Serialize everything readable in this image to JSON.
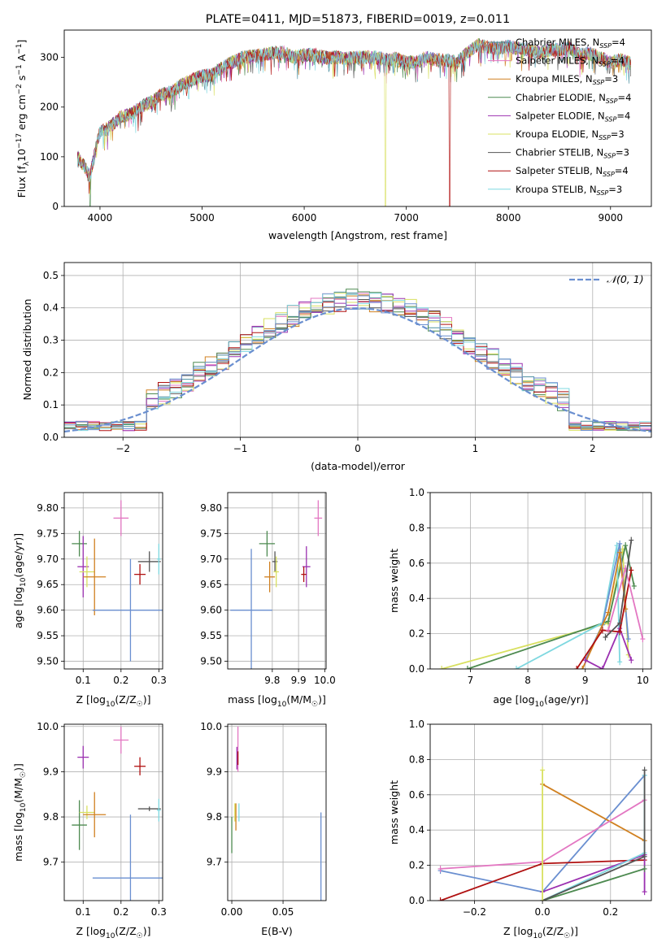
{
  "chart_data": [
    {
      "id": "spectrum",
      "type": "line",
      "title": "PLATE=0411, MJD=51873, FIBERID=0019, z=0.011",
      "xlabel": "wavelength [Angstrom, rest frame]",
      "ylabel": "Flux [f_λ 10^-17 erg cm^-2 s^-1 A^-1]",
      "xlim": [
        3650,
        9400
      ],
      "ylim": [
        0,
        355
      ],
      "xticks": [
        4000,
        5000,
        6000,
        7000,
        8000,
        9000
      ],
      "yticks": [
        0,
        100,
        200,
        300
      ],
      "grid": false,
      "legend": "right",
      "series": [
        {
          "name": "Chabrier MILES, N_SSP=4",
          "color": "#4a8fa0"
        },
        {
          "name": "Salpeter MILES, N_SSP=4",
          "color": "#e377c2"
        },
        {
          "name": "Kroupa MILES, N_SSP=3",
          "color": "#d08020"
        },
        {
          "name": "Chabrier ELODIE, N_SSP=4",
          "color": "#4d8a50"
        },
        {
          "name": "Salpeter ELODIE, N_SSP=4",
          "color": "#9b30b0"
        },
        {
          "name": "Kroupa ELODIE, N_SSP=3",
          "color": "#d8e060"
        },
        {
          "name": "Chabrier STELIB, N_SSP=3",
          "color": "#555555"
        },
        {
          "name": "Salpeter STELIB, N_SSP=4",
          "color": "#b01010"
        },
        {
          "name": "Kroupa STELIB, N_SSP=3",
          "color": "#7fd8e0"
        }
      ],
      "profile": [
        [
          3780,
          100
        ],
        [
          3850,
          80
        ],
        [
          3900,
          60
        ],
        [
          3950,
          110
        ],
        [
          4000,
          150
        ],
        [
          4100,
          160
        ],
        [
          4200,
          180
        ],
        [
          4300,
          185
        ],
        [
          4400,
          200
        ],
        [
          4500,
          210
        ],
        [
          4600,
          225
        ],
        [
          4700,
          230
        ],
        [
          4800,
          245
        ],
        [
          4900,
          255
        ],
        [
          5000,
          262
        ],
        [
          5100,
          265
        ],
        [
          5200,
          280
        ],
        [
          5300,
          290
        ],
        [
          5400,
          300
        ],
        [
          5500,
          302
        ],
        [
          5600,
          305
        ],
        [
          5700,
          310
        ],
        [
          5800,
          310
        ],
        [
          5900,
          300
        ],
        [
          6000,
          305
        ],
        [
          6100,
          305
        ],
        [
          6200,
          300
        ],
        [
          6300,
          300
        ],
        [
          6400,
          298
        ],
        [
          6500,
          300
        ],
        [
          6600,
          300
        ],
        [
          6700,
          300
        ],
        [
          6800,
          295
        ],
        [
          6900,
          298
        ],
        [
          7000,
          290
        ],
        [
          7100,
          290
        ],
        [
          7200,
          300
        ],
        [
          7300,
          295
        ],
        [
          7400,
          295
        ],
        [
          7500,
          290
        ],
        [
          7600,
          310
        ],
        [
          7700,
          325
        ],
        [
          7800,
          320
        ],
        [
          7900,
          318
        ],
        [
          8000,
          322
        ],
        [
          8100,
          318
        ],
        [
          8200,
          315
        ],
        [
          8300,
          310
        ],
        [
          8400,
          315
        ],
        [
          8500,
          315
        ],
        [
          8600,
          320
        ],
        [
          8700,
          305
        ],
        [
          8800,
          308
        ],
        [
          8900,
          300
        ],
        [
          9000,
          290
        ],
        [
          9100,
          295
        ],
        [
          9200,
          288
        ]
      ]
    },
    {
      "id": "residuals",
      "type": "histogram",
      "xlabel": "(data-model)/error",
      "ylabel": "Normed distribution",
      "xlim": [
        -2.5,
        2.5
      ],
      "ylim": [
        0,
        0.54
      ],
      "xticks": [
        -2,
        -1,
        0,
        1,
        2
      ],
      "yticks": [
        0.0,
        0.1,
        0.2,
        0.3,
        0.4,
        0.5
      ],
      "grid": true,
      "legend": "top-right",
      "reference": {
        "name": "𝒩(0, 1)",
        "color": "#6a8fd0"
      },
      "bin_width": 0.1
    },
    {
      "id": "age_vs_Z",
      "type": "scatter",
      "xlabel": "Z [log10(Z/Z☉)]",
      "ylabel": "age [log10(age/yr)]",
      "xlim": [
        0.05,
        0.31
      ],
      "ylim": [
        9.485,
        9.83
      ],
      "xticks": [
        0.1,
        0.2,
        0.3
      ],
      "yticks": [
        9.5,
        9.55,
        9.6,
        9.65,
        9.7,
        9.75,
        9.8
      ],
      "grid": true,
      "points": [
        {
          "x": 0.09,
          "y": 9.73,
          "xerr": 0.02,
          "yerr": 0.025,
          "color": "#4d8a50"
        },
        {
          "x": 0.1,
          "y": 9.685,
          "xerr": 0.015,
          "yerr": 0.06,
          "color": "#9b30b0"
        },
        {
          "x": 0.11,
          "y": 9.675,
          "xerr": 0.02,
          "yerr": 0.03,
          "color": "#d8e060"
        },
        {
          "x": 0.13,
          "y": 9.665,
          "xerr": 0.03,
          "yerr": 0.075,
          "color": "#d08020"
        },
        {
          "x": 0.2,
          "y": 9.78,
          "xerr": 0.02,
          "yerr": 0.035,
          "color": "#e377c2"
        },
        {
          "x": 0.225,
          "y": 9.6,
          "xerr": 0.1,
          "yerr": 0.1,
          "color": "#6a8fd0"
        },
        {
          "x": 0.25,
          "y": 9.67,
          "xerr": 0.015,
          "yerr": 0.02,
          "color": "#b01010"
        },
        {
          "x": 0.275,
          "y": 9.695,
          "xerr": 0.03,
          "yerr": 0.02,
          "color": "#555555"
        },
        {
          "x": 0.3,
          "y": 9.7,
          "xerr": 0.005,
          "yerr": 0.03,
          "color": "#7fd8e0"
        }
      ]
    },
    {
      "id": "age_vs_mass",
      "type": "scatter",
      "xlabel": "mass [log10(M/M☉)]",
      "ylabel": "",
      "xlim": [
        9.63,
        10.005
      ],
      "ylim": [
        9.485,
        9.83
      ],
      "xticks": [
        9.8,
        9.9,
        10.0
      ],
      "yticks": [
        9.5,
        9.55,
        9.6,
        9.65,
        9.7,
        9.75,
        9.8
      ],
      "grid": true,
      "points": [
        {
          "x": 9.78,
          "y": 9.73,
          "xerr": 0.03,
          "yerr": 0.025,
          "color": "#4d8a50"
        },
        {
          "x": 9.79,
          "y": 9.665,
          "xerr": 0.02,
          "yerr": 0.03,
          "color": "#d08020"
        },
        {
          "x": 9.81,
          "y": 9.695,
          "xerr": 0.01,
          "yerr": 0.02,
          "color": "#555555"
        },
        {
          "x": 9.815,
          "y": 9.675,
          "xerr": 0.01,
          "yerr": 0.03,
          "color": "#d8e060"
        },
        {
          "x": 9.72,
          "y": 9.6,
          "xerr": 0.08,
          "yerr": 0.12,
          "color": "#6a8fd0"
        },
        {
          "x": 9.93,
          "y": 9.685,
          "xerr": 0.015,
          "yerr": 0.04,
          "color": "#9b30b0"
        },
        {
          "x": 9.92,
          "y": 9.67,
          "xerr": 0.01,
          "yerr": 0.015,
          "color": "#b01010"
        },
        {
          "x": 9.975,
          "y": 9.78,
          "xerr": 0.015,
          "yerr": 0.035,
          "color": "#e377c2"
        }
      ]
    },
    {
      "id": "weight_vs_age",
      "type": "line",
      "xlabel": "age [log10(age/yr)]",
      "ylabel": "mass weight",
      "xlim": [
        6.3,
        10.15
      ],
      "ylim": [
        0,
        1.0
      ],
      "xticks": [
        7,
        8,
        9,
        10
      ],
      "yticks": [
        0.0,
        0.2,
        0.4,
        0.6,
        0.8,
        1.0
      ],
      "grid": true,
      "series": [
        {
          "color": "#d8e060",
          "points": [
            [
              6.5,
              0.0
            ],
            [
              9.4,
              0.26
            ],
            [
              9.65,
              0.68
            ],
            [
              9.75,
              0.08
            ]
          ]
        },
        {
          "color": "#4d8a50",
          "points": [
            [
              6.95,
              0.0
            ],
            [
              9.4,
              0.27
            ],
            [
              9.7,
              0.7
            ],
            [
              9.85,
              0.47
            ]
          ]
        },
        {
          "color": "#7fd8e0",
          "points": [
            [
              7.8,
              0.0
            ],
            [
              9.3,
              0.26
            ],
            [
              9.55,
              0.7
            ],
            [
              9.6,
              0.04
            ]
          ]
        },
        {
          "color": "#6a8fd0",
          "points": [
            [
              9.0,
              0.05
            ],
            [
              9.3,
              0.25
            ],
            [
              9.6,
              0.71
            ],
            [
              9.75,
              0.17
            ]
          ]
        },
        {
          "color": "#d08020",
          "points": [
            [
              8.95,
              0.0
            ],
            [
              9.4,
              0.32
            ],
            [
              9.6,
              0.66
            ],
            [
              9.7,
              0.34
            ]
          ]
        },
        {
          "color": "#9b30b0",
          "points": [
            [
              9.0,
              0.05
            ],
            [
              9.3,
              0.0
            ],
            [
              9.6,
              0.23
            ],
            [
              9.8,
              0.05
            ]
          ]
        },
        {
          "color": "#b01010",
          "points": [
            [
              8.85,
              0.0
            ],
            [
              9.3,
              0.22
            ],
            [
              9.6,
              0.21
            ],
            [
              9.8,
              0.56
            ]
          ]
        },
        {
          "color": "#e377c2",
          "points": [
            [
              9.4,
              0.22
            ],
            [
              9.7,
              0.57
            ],
            [
              10.0,
              0.17
            ]
          ]
        },
        {
          "color": "#555555",
          "points": [
            [
              9.35,
              0.18
            ],
            [
              9.6,
              0.26
            ],
            [
              9.8,
              0.73
            ]
          ]
        }
      ]
    },
    {
      "id": "mass_vs_Z",
      "type": "scatter",
      "xlabel": "Z [log10(Z/Z☉)]",
      "ylabel": "mass [log10(M/M☉)]",
      "xlim": [
        0.05,
        0.31
      ],
      "ylim": [
        9.615,
        10.005
      ],
      "xticks": [
        0.1,
        0.2,
        0.3
      ],
      "yticks": [
        9.7,
        9.8,
        9.9,
        10.0
      ],
      "grid": true,
      "points": [
        {
          "x": 0.09,
          "y": 9.782,
          "xerr": 0.02,
          "yerr": 0.055,
          "color": "#4d8a50"
        },
        {
          "x": 0.1,
          "y": 9.932,
          "xerr": 0.015,
          "yerr": 0.025,
          "color": "#9b30b0"
        },
        {
          "x": 0.11,
          "y": 9.81,
          "xerr": 0.02,
          "yerr": 0.015,
          "color": "#d8e060"
        },
        {
          "x": 0.13,
          "y": 9.805,
          "xerr": 0.03,
          "yerr": 0.05,
          "color": "#d08020"
        },
        {
          "x": 0.2,
          "y": 9.97,
          "xerr": 0.02,
          "yerr": 0.03,
          "color": "#e377c2"
        },
        {
          "x": 0.25,
          "y": 9.912,
          "xerr": 0.015,
          "yerr": 0.02,
          "color": "#b01010"
        },
        {
          "x": 0.225,
          "y": 9.665,
          "xerr": 0.1,
          "yerr": 0.14,
          "color": "#6a8fd0"
        },
        {
          "x": 0.275,
          "y": 9.818,
          "xerr": 0.03,
          "yerr": 0.005,
          "color": "#555555"
        },
        {
          "x": 0.3,
          "y": 9.815,
          "xerr": 0.005,
          "yerr": 0.025,
          "color": "#7fd8e0"
        }
      ]
    },
    {
      "id": "mass_vs_ebv",
      "type": "scatter",
      "xlabel": "E(B-V)",
      "ylabel": "",
      "xlim": [
        -0.004,
        0.092
      ],
      "ylim": [
        9.615,
        10.005
      ],
      "xticks": [
        0.0,
        0.05
      ],
      "yticks": [
        9.7,
        9.8,
        9.9,
        10.0
      ],
      "grid": true,
      "points": [
        {
          "x": 0.0,
          "y": 9.76,
          "xerr": 0.0,
          "yerr": 0.04,
          "color": "#4d8a50"
        },
        {
          "x": 0.003,
          "y": 9.81,
          "xerr": 0.0,
          "yerr": 0.02,
          "color": "#d8e060"
        },
        {
          "x": 0.004,
          "y": 9.8,
          "xerr": 0.0,
          "yerr": 0.03,
          "color": "#d08020"
        },
        {
          "x": 0.005,
          "y": 9.93,
          "xerr": 0.0,
          "yerr": 0.025,
          "color": "#9b30b0"
        },
        {
          "x": 0.006,
          "y": 9.95,
          "xerr": 0.0,
          "yerr": 0.05,
          "color": "#e377c2"
        },
        {
          "x": 0.006,
          "y": 9.93,
          "xerr": 0.0,
          "yerr": 0.015,
          "color": "#b01010"
        },
        {
          "x": 0.007,
          "y": 9.81,
          "xerr": 0.0,
          "yerr": 0.02,
          "color": "#7fd8e0"
        },
        {
          "x": 0.087,
          "y": 9.69,
          "xerr": 0.0,
          "yerr": 0.12,
          "color": "#6a8fd0"
        }
      ]
    },
    {
      "id": "weight_vs_Z",
      "type": "line",
      "xlabel": "Z [log10(Z/Z☉)]",
      "ylabel": "mass weight",
      "xlim": [
        -0.33,
        0.32
      ],
      "ylim": [
        0,
        1.0
      ],
      "xticks": [
        -0.2,
        0.0,
        0.2
      ],
      "yticks": [
        0.0,
        0.2,
        0.4,
        0.6,
        0.8,
        1.0
      ],
      "grid": true,
      "series": [
        {
          "color": "#6a8fd0",
          "points": [
            [
              -0.3,
              0.17
            ],
            [
              0.0,
              0.05
            ],
            [
              0.3,
              0.71
            ]
          ]
        },
        {
          "color": "#d08020",
          "points": [
            [
              0.0,
              0.66
            ],
            [
              0.3,
              0.34
            ]
          ]
        },
        {
          "color": "#e377c2",
          "points": [
            [
              -0.3,
              0.18
            ],
            [
              0.0,
              0.22
            ],
            [
              0.3,
              0.57
            ]
          ]
        },
        {
          "color": "#b01010",
          "points": [
            [
              -0.3,
              0.0
            ],
            [
              0.0,
              0.21
            ],
            [
              0.3,
              0.23
            ]
          ]
        },
        {
          "color": "#9b30b0",
          "points": [
            [
              0.0,
              0.05
            ],
            [
              0.3,
              0.26
            ],
            [
              0.3,
              0.05
            ]
          ]
        },
        {
          "color": "#4d8a50",
          "points": [
            [
              0.0,
              0.0
            ],
            [
              0.3,
              0.18
            ]
          ]
        },
        {
          "color": "#7fd8e0",
          "points": [
            [
              0.0,
              0.0
            ],
            [
              0.3,
              0.27
            ],
            [
              0.3,
              0.71
            ]
          ]
        },
        {
          "color": "#555555",
          "points": [
            [
              0.0,
              0.0
            ],
            [
              0.3,
              0.25
            ],
            [
              0.3,
              0.74
            ]
          ]
        },
        {
          "color": "#d8e060",
          "points": [
            [
              0.0,
              0.0
            ],
            [
              0.0,
              0.74
            ]
          ]
        }
      ]
    }
  ]
}
